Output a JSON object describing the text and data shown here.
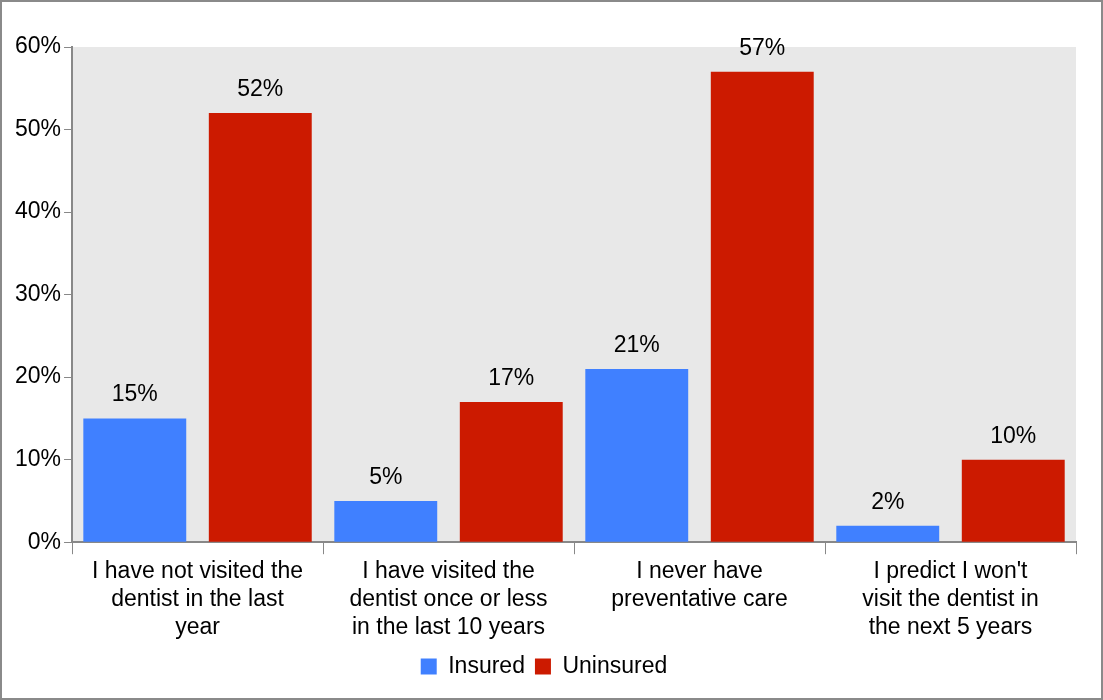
{
  "chart_data": {
    "type": "bar",
    "categories": [
      "I have not visited the dentist in the last year",
      "I have visited the dentist once or less in the last 10 years",
      "I never have preventative care",
      "I predict I won't visit the dentist in the next 5 years"
    ],
    "series": [
      {
        "name": "Insured",
        "color": "#4080ff",
        "values": [
          15,
          5,
          21,
          2
        ],
        "value_labels": [
          "15%",
          "5%",
          "21%",
          "2%"
        ]
      },
      {
        "name": "Uninsured",
        "color": "#cc1a00",
        "values": [
          52,
          17,
          57,
          10
        ],
        "value_labels": [
          "52%",
          "17%",
          "57%",
          "10%"
        ]
      }
    ],
    "ylim": [
      0,
      60
    ],
    "yticks": [
      {
        "value": 0,
        "label": "0%"
      },
      {
        "value": 10,
        "label": "10%"
      },
      {
        "value": 20,
        "label": "20%"
      },
      {
        "value": 30,
        "label": "30%"
      },
      {
        "value": 40,
        "label": "40%"
      },
      {
        "value": 50,
        "label": "50%"
      },
      {
        "value": 60,
        "label": "60%"
      }
    ],
    "grid": false,
    "legend": "bottom"
  }
}
